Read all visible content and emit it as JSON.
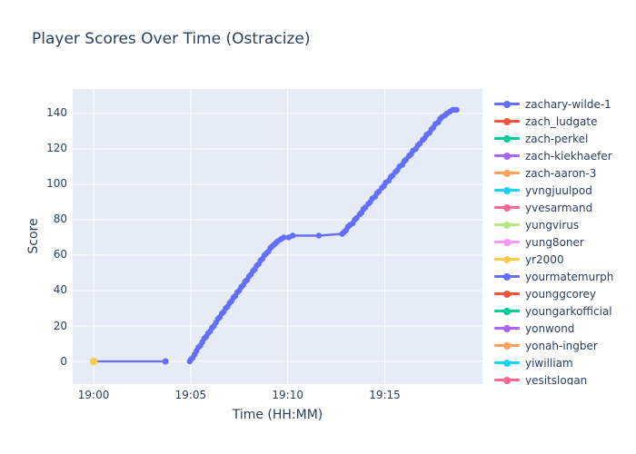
{
  "colors": {
    "text": "#2a3f5f",
    "plot_background": "#E5ECF6",
    "grid": "#ffffff",
    "paper_background": "#ffffff"
  },
  "chart_data": {
    "type": "line",
    "title": "Player Scores Over Time (Ostracize)",
    "xlabel": "Time (HH:MM)",
    "ylabel": "Score",
    "grid": true,
    "legend_position": "right",
    "x_axis_note": "t = minutes after 19:00",
    "x_range_minutes": [
      -1.08,
      20.03
    ],
    "ylim": [
      -12.8,
      153.8
    ],
    "x_ticks": [
      {
        "label": "19:00",
        "t": 0
      },
      {
        "label": "19:05",
        "t": 5
      },
      {
        "label": "19:10",
        "t": 10
      },
      {
        "label": "19:15",
        "t": 15
      }
    ],
    "y_ticks": [
      0,
      20,
      40,
      60,
      80,
      100,
      120,
      140
    ],
    "series": [
      {
        "name": "zachary-wilde-1",
        "color": "#636EFA",
        "mode": "lines+markers",
        "line_width": 2.4,
        "marker_size": 3.2,
        "points": [
          [
            4.95,
            0
          ],
          [
            5.0,
            1
          ],
          [
            5.1,
            2
          ],
          [
            5.2,
            4
          ],
          [
            5.3,
            6
          ],
          [
            5.4,
            8
          ],
          [
            5.5,
            9
          ],
          [
            5.6,
            11
          ],
          [
            5.7,
            13
          ],
          [
            5.8,
            14
          ],
          [
            5.9,
            16
          ],
          [
            6.0,
            17
          ],
          [
            6.1,
            19
          ],
          [
            6.2,
            20
          ],
          [
            6.3,
            22
          ],
          [
            6.4,
            24
          ],
          [
            6.5,
            25
          ],
          [
            6.6,
            27
          ],
          [
            6.7,
            28
          ],
          [
            6.8,
            30
          ],
          [
            6.9,
            31
          ],
          [
            7.0,
            33
          ],
          [
            7.1,
            34
          ],
          [
            7.2,
            36
          ],
          [
            7.3,
            37
          ],
          [
            7.4,
            39
          ],
          [
            7.5,
            40
          ],
          [
            7.6,
            42
          ],
          [
            7.7,
            43
          ],
          [
            7.8,
            45
          ],
          [
            7.9,
            46
          ],
          [
            8.0,
            48
          ],
          [
            8.1,
            49
          ],
          [
            8.2,
            51
          ],
          [
            8.3,
            52
          ],
          [
            8.4,
            54
          ],
          [
            8.5,
            55
          ],
          [
            8.6,
            57
          ],
          [
            8.7,
            58
          ],
          [
            8.8,
            60
          ],
          [
            8.9,
            61
          ],
          [
            9.0,
            62
          ],
          [
            9.1,
            64
          ],
          [
            9.2,
            65
          ],
          [
            9.3,
            66
          ],
          [
            9.4,
            67
          ],
          [
            9.5,
            68
          ],
          [
            9.65,
            69
          ],
          [
            9.8,
            70
          ],
          [
            10.05,
            70
          ],
          [
            10.25,
            71
          ],
          [
            11.6,
            71
          ],
          [
            12.8,
            72
          ],
          [
            12.9,
            73
          ],
          [
            13.0,
            74
          ],
          [
            13.1,
            76
          ],
          [
            13.2,
            77
          ],
          [
            13.35,
            78
          ],
          [
            13.45,
            80
          ],
          [
            13.55,
            81
          ],
          [
            13.7,
            83
          ],
          [
            13.8,
            84
          ],
          [
            13.9,
            86
          ],
          [
            14.0,
            87
          ],
          [
            14.15,
            89
          ],
          [
            14.25,
            90
          ],
          [
            14.35,
            92
          ],
          [
            14.5,
            93
          ],
          [
            14.6,
            95
          ],
          [
            14.7,
            96
          ],
          [
            14.85,
            98
          ],
          [
            14.95,
            99
          ],
          [
            15.05,
            101
          ],
          [
            15.2,
            102
          ],
          [
            15.3,
            104
          ],
          [
            15.4,
            105
          ],
          [
            15.55,
            107
          ],
          [
            15.65,
            108
          ],
          [
            15.75,
            110
          ],
          [
            15.9,
            111
          ],
          [
            16.0,
            113
          ],
          [
            16.1,
            114
          ],
          [
            16.25,
            116
          ],
          [
            16.35,
            117
          ],
          [
            16.45,
            119
          ],
          [
            16.6,
            120
          ],
          [
            16.7,
            122
          ],
          [
            16.8,
            123
          ],
          [
            16.95,
            125
          ],
          [
            17.05,
            126
          ],
          [
            17.15,
            128
          ],
          [
            17.3,
            129
          ],
          [
            17.4,
            131
          ],
          [
            17.5,
            132
          ],
          [
            17.6,
            134
          ],
          [
            17.75,
            135
          ],
          [
            17.85,
            137
          ],
          [
            17.95,
            138
          ],
          [
            18.1,
            139
          ],
          [
            18.2,
            140
          ],
          [
            18.35,
            141
          ],
          [
            18.5,
            142
          ],
          [
            18.6,
            142
          ],
          [
            18.7,
            142
          ]
        ]
      },
      {
        "name": "yourmatemurph",
        "color": "#636EFA",
        "mode": "lines+markers",
        "line_width": 2.2,
        "marker_size": 3.5,
        "points": [
          [
            0,
            0
          ],
          [
            3.7,
            0
          ]
        ]
      },
      {
        "name": "yr2000",
        "color": "#FECB52",
        "mode": "markers",
        "line_width": 2,
        "marker_size": 4.2,
        "points": [
          [
            0,
            0
          ]
        ]
      }
    ],
    "legend": [
      {
        "name": "zachary-wilde-1",
        "color": "#636EFA"
      },
      {
        "name": "zach_ludgate",
        "color": "#EF553B"
      },
      {
        "name": "zach-perkel",
        "color": "#00CC96"
      },
      {
        "name": "zach-kiekhaefer",
        "color": "#AB63FA"
      },
      {
        "name": "zach-aaron-3",
        "color": "#FFA15A"
      },
      {
        "name": "yvngjuulpod",
        "color": "#19D3F3"
      },
      {
        "name": "yvesarmand",
        "color": "#FF6692"
      },
      {
        "name": "yungvirus",
        "color": "#B6E880"
      },
      {
        "name": "yung8oner",
        "color": "#FF97FF"
      },
      {
        "name": "yr2000",
        "color": "#FECB52"
      },
      {
        "name": "yourmatemurph",
        "color": "#636EFA"
      },
      {
        "name": "younggcorey",
        "color": "#EF553B"
      },
      {
        "name": "youngarkofficial",
        "color": "#00CC96"
      },
      {
        "name": "yonwond",
        "color": "#AB63FA"
      },
      {
        "name": "yonah-ingber",
        "color": "#FFA15A"
      },
      {
        "name": "yiwilliam",
        "color": "#19D3F3"
      },
      {
        "name": "yesitslogan",
        "color": "#FF6692"
      }
    ]
  }
}
